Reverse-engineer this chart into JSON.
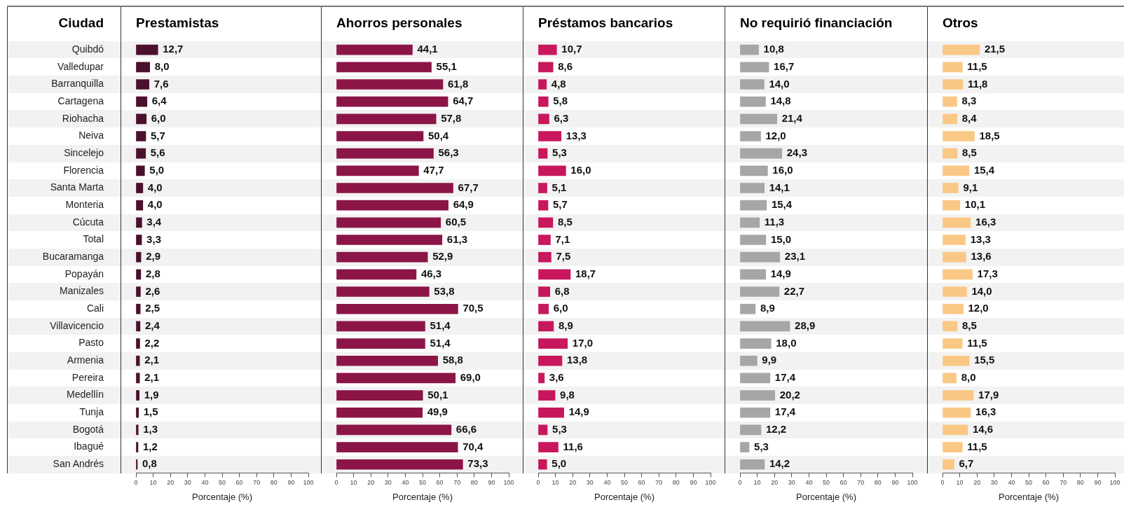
{
  "chart_data": [
    {
      "type": "bar",
      "orientation": "horizontal",
      "title": "Prestamistas",
      "ylabel": "Ciudad",
      "xlabel": "Porcentaje (%)",
      "categories": [
        "Quibdó",
        "Valledupar",
        "Barranquilla",
        "Cartagena",
        "Riohacha",
        "Neiva",
        "Sincelejo",
        "Florencia",
        "Santa Marta",
        "Monteria",
        "Cúcuta",
        "Total",
        "Bucaramanga",
        "Popayán",
        "Manizales",
        "Cali",
        "Villavicencio",
        "Pasto",
        "Armenia",
        "Pereira",
        "Medellín",
        "Tunja",
        "Bogotá",
        "Ibagué",
        "San Andrés"
      ],
      "values": [
        12.7,
        8.0,
        7.6,
        6.4,
        6.0,
        5.7,
        5.6,
        5.0,
        4.0,
        4.0,
        3.4,
        3.3,
        2.9,
        2.8,
        2.6,
        2.5,
        2.4,
        2.2,
        2.1,
        2.1,
        1.9,
        1.5,
        1.3,
        1.2,
        0.8
      ],
      "value_labels": [
        "12,7",
        "8,0",
        "7,6",
        "6,4",
        "6,0",
        "5,7",
        "5,6",
        "5,0",
        "4,0",
        "4,0",
        "3,4",
        "3,3",
        "2,9",
        "2,8",
        "2,6",
        "2,5",
        "2,4",
        "2,2",
        "2,1",
        "2,1",
        "1,9",
        "1,5",
        "1,3",
        "1,2",
        "0,8"
      ],
      "color": "#4b102d",
      "xlim": [
        0,
        100
      ],
      "xticks": [
        0,
        10,
        20,
        30,
        40,
        50,
        60,
        70,
        80,
        90,
        100
      ]
    },
    {
      "type": "bar",
      "orientation": "horizontal",
      "title": "Ahorros personales",
      "xlabel": "Porcentaje (%)",
      "categories": [
        null,
        null,
        null,
        null,
        null,
        null,
        null,
        null,
        null,
        null,
        null,
        null,
        null,
        null,
        null,
        null,
        null,
        null,
        null,
        null,
        null,
        null,
        null,
        null,
        null
      ],
      "values": [
        44.1,
        55.1,
        61.8,
        64.7,
        57.8,
        50.4,
        56.3,
        47.7,
        67.7,
        64.9,
        60.5,
        61.3,
        52.9,
        46.3,
        53.8,
        70.5,
        51.4,
        51.4,
        58.8,
        69.0,
        50.1,
        49.9,
        66.6,
        70.4,
        73.3
      ],
      "value_labels": [
        "44,1",
        "55,1",
        "61,8",
        "64,7",
        "57,8",
        "50,4",
        "56,3",
        "47,7",
        "67,7",
        "64,9",
        "60,5",
        "61,3",
        "52,9",
        "46,3",
        "53,8",
        "70,5",
        "51,4",
        "51,4",
        "58,8",
        "69,0",
        "50,1",
        "49,9",
        "66,6",
        "70,4",
        "73,3"
      ],
      "color": "#8c1547",
      "xlim": [
        0,
        100
      ],
      "xticks": [
        0,
        10,
        20,
        30,
        40,
        50,
        60,
        70,
        80,
        90,
        100
      ],
      "tick_labels": "x"
    },
    {
      "type": "bar",
      "orientation": "horizontal",
      "title": "Préstamos bancarios",
      "xlabel": "Porcentaje (%)",
      "categories": [
        null,
        null,
        null,
        null,
        null,
        null,
        null,
        null,
        null,
        null,
        null,
        null,
        null,
        null,
        null,
        null,
        null,
        null,
        null,
        null,
        null,
        null,
        null,
        null,
        null
      ],
      "values": [
        10.7,
        8.6,
        4.8,
        5.8,
        6.3,
        13.3,
        5.3,
        16.0,
        5.1,
        5.7,
        8.5,
        7.1,
        7.5,
        18.7,
        6.8,
        6.0,
        8.9,
        17.0,
        13.8,
        3.6,
        9.8,
        14.9,
        5.3,
        11.6,
        5.0
      ],
      "value_labels": [
        "10,7",
        "8,6",
        "4,8",
        "5,8",
        "6,3",
        "13,3",
        "5,3",
        "16,0",
        "5,1",
        "5,7",
        "8,5",
        "7,1",
        "7,5",
        "18,7",
        "6,8",
        "6,0",
        "8,9",
        "17,0",
        "13,8",
        "3,6",
        "9,8",
        "14,9",
        "5,3",
        "11,6",
        "5,0"
      ],
      "color": "#c8175d",
      "xlim": [
        0,
        100
      ],
      "xticks": [
        0,
        10,
        20,
        30,
        40,
        50,
        60,
        70,
        80,
        90,
        100
      ],
      "tick_labels": "x"
    },
    {
      "type": "bar",
      "orientation": "horizontal",
      "title": "No requirió financiación",
      "xlabel": "Porcentaje (%)",
      "categories": [
        null,
        null,
        null,
        null,
        null,
        null,
        null,
        null,
        null,
        null,
        null,
        null,
        null,
        null,
        null,
        null,
        null,
        null,
        null,
        null,
        null,
        null,
        null,
        null,
        null
      ],
      "values": [
        10.8,
        16.7,
        14.0,
        14.8,
        21.4,
        12.0,
        24.3,
        16.0,
        14.1,
        15.4,
        11.3,
        15.0,
        23.1,
        14.9,
        22.7,
        8.9,
        28.9,
        18.0,
        9.9,
        17.4,
        20.2,
        17.4,
        12.2,
        5.3,
        14.2
      ],
      "value_labels": [
        "10,8",
        "16,7",
        "14,0",
        "14,8",
        "21,4",
        "12,0",
        "24,3",
        "16,0",
        "14,1",
        "15,4",
        "11,3",
        "15,0",
        "23,1",
        "14,9",
        "22,7",
        "8,9",
        "28,9",
        "18,0",
        "9,9",
        "17,4",
        "20,2",
        "17,4",
        "12,2",
        "5,3",
        "14,2"
      ],
      "color": "#a6a6a6",
      "xlim": [
        0,
        100
      ],
      "xticks": [
        0,
        10,
        20,
        30,
        40,
        50,
        60,
        70,
        80,
        90,
        100
      ],
      "tick_labels": "x"
    },
    {
      "type": "bar",
      "orientation": "horizontal",
      "title": "Otros",
      "xlabel": "Porcentaje (%)",
      "categories": [
        null,
        null,
        null,
        null,
        null,
        null,
        null,
        null,
        null,
        null,
        null,
        null,
        null,
        null,
        null,
        null,
        null,
        null,
        null,
        null,
        null,
        null,
        null,
        null,
        null
      ],
      "values": [
        21.5,
        11.5,
        11.8,
        8.3,
        8.4,
        18.5,
        8.5,
        15.4,
        9.1,
        10.1,
        16.3,
        13.3,
        13.6,
        17.3,
        14.0,
        12.0,
        8.5,
        11.5,
        15.5,
        8.0,
        17.9,
        16.3,
        14.6,
        11.5,
        6.7
      ],
      "value_labels": [
        "21,5",
        "11,5",
        "11,8",
        "8,3",
        "8,4",
        "18,5",
        "8,5",
        "15,4",
        "9,1",
        "10,1",
        "16,3",
        "13,3",
        "13,6",
        "17,3",
        "14,0",
        "12,0",
        "8,5",
        "11,5",
        "15,5",
        "8,0",
        "17,9",
        "16,3",
        "14,6",
        "11,5",
        "6,7"
      ],
      "color": "#fac885",
      "xlim": [
        0,
        100
      ],
      "xticks": [
        0,
        10,
        20,
        30,
        40,
        50,
        60,
        70,
        80,
        90,
        100
      ],
      "tick_labels": "x"
    }
  ]
}
